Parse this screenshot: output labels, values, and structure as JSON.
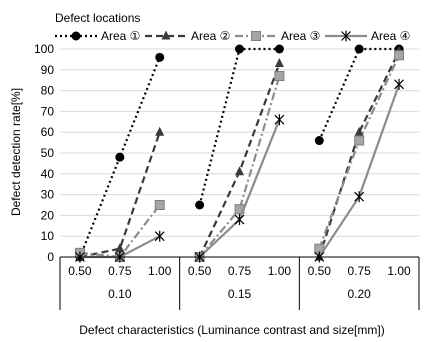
{
  "chart_data": {
    "type": "line",
    "legend_title": "Defect locations",
    "legend_position": "top",
    "ylabel": "Defect detection rate[%]",
    "xlabel": "Defect characteristics (Luminance contrast and size[mm])",
    "ylim": [
      0,
      100
    ],
    "ytick_step": 10,
    "grid": true,
    "groups": [
      {
        "label": "0.10",
        "sizes": [
          "0.50",
          "0.75",
          "1.00"
        ]
      },
      {
        "label": "0.15",
        "sizes": [
          "0.50",
          "0.75",
          "1.00"
        ]
      },
      {
        "label": "0.20",
        "sizes": [
          "0.50",
          "0.75",
          "1.00"
        ]
      }
    ],
    "series": [
      {
        "name": "Area ①",
        "marker": "circle",
        "dash": "dot",
        "color": "#000000",
        "values": [
          [
            0,
            48,
            96
          ],
          [
            25,
            100,
            100
          ],
          [
            56,
            100,
            100
          ]
        ]
      },
      {
        "name": "Area ②",
        "marker": "triangle",
        "dash": "dash",
        "color": "#3a3a3a",
        "values": [
          [
            0,
            4,
            60
          ],
          [
            0,
            41,
            93
          ],
          [
            0,
            60,
            99
          ]
        ]
      },
      {
        "name": "Area ③",
        "marker": "square",
        "dash": "dashdot",
        "color": "#8c8c8c",
        "values": [
          [
            2,
            0,
            25
          ],
          [
            0,
            23,
            87
          ],
          [
            4,
            56,
            97
          ]
        ]
      },
      {
        "name": "Area ④",
        "marker": "star",
        "dash": "solid",
        "color": "#8c8c8c",
        "values": [
          [
            0,
            0,
            10
          ],
          [
            0,
            18,
            66
          ],
          [
            0,
            29,
            83
          ]
        ]
      }
    ]
  }
}
